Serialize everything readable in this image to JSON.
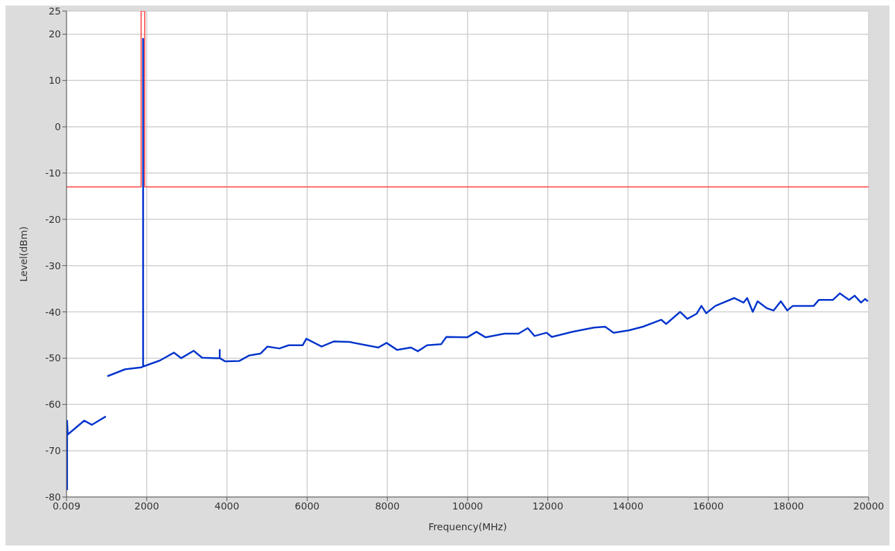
{
  "chart_data": {
    "type": "line",
    "xlabel": "Frequency(MHz)",
    "ylabel": "Level(dBm)",
    "xlim": [
      0.009,
      20000
    ],
    "xticks": [
      0.009,
      2000,
      4000,
      6000,
      8000,
      10000,
      12000,
      14000,
      16000,
      18000,
      20000
    ],
    "ylim": [
      -80,
      25
    ],
    "yticks": [
      -80,
      -70,
      -60,
      -50,
      -40,
      -30,
      -20,
      -10,
      0,
      10,
      20,
      25
    ],
    "grid": true,
    "marker": "none",
    "line_style": "solid",
    "series": [
      {
        "color": "#ff4040",
        "x": [
          0.009,
          1860,
          1860,
          1950,
          1950,
          20000
        ],
        "values": [
          -13,
          -13,
          25,
          25,
          -13,
          -13
        ]
      },
      {
        "color": "#0033cc",
        "x": [
          15,
          15,
          30,
          440,
          630,
          980,
          1000,
          1020,
          1460,
          1860,
          1910,
          1910,
          1910,
          2330,
          2680,
          2860,
          3170,
          3380,
          3730,
          3820,
          3820,
          3820,
          3960,
          4310,
          4560,
          4840,
          5010,
          5310,
          5540,
          5890,
          5980,
          6360,
          6660,
          7060,
          7770,
          7980,
          8240,
          8590,
          8760,
          8990,
          9340,
          9470,
          9990,
          10220,
          10450,
          10920,
          11270,
          11500,
          11670,
          11970,
          12100,
          12620,
          13150,
          13430,
          13640,
          14020,
          14370,
          14830,
          14950,
          15300,
          15480,
          15710,
          15830,
          15950,
          16180,
          16650,
          16880,
          16970,
          17110,
          17230,
          17460,
          17630,
          17810,
          17970,
          18110,
          18630,
          18760,
          19110,
          19280,
          19510,
          19650,
          19810,
          19910,
          19980
        ],
        "values": [
          -78.5,
          -63.5,
          -66.5,
          -63.5,
          -64.4,
          -62.6,
          null,
          -53.9,
          -52.4,
          -52,
          -51.8,
          19,
          -51.8,
          -50.5,
          -48.8,
          -50,
          -48.4,
          -49.9,
          -50,
          -50,
          -48.2,
          -50,
          -50.7,
          -50.6,
          -49.4,
          -49,
          -47.5,
          -47.9,
          -47.2,
          -47.2,
          -45.8,
          -47.5,
          -46.4,
          -46.5,
          -47.7,
          -46.7,
          -48.2,
          -47.7,
          -48.5,
          -47.2,
          -47,
          -45.4,
          -45.5,
          -44.3,
          -45.5,
          -44.7,
          -44.7,
          -43.5,
          -45.2,
          -44.5,
          -45.4,
          -44.3,
          -43.4,
          -43.2,
          -44.5,
          -44,
          -43.2,
          -41.7,
          -42.6,
          -40,
          -41.5,
          -40.4,
          -38.7,
          -40.3,
          -38.7,
          -37,
          -38,
          -37,
          -40,
          -37.7,
          -39.2,
          -39.7,
          -37.7,
          -39.7,
          -38.7,
          -38.7,
          -37.4,
          -37.4,
          -36,
          -37.4,
          -36.5,
          -38,
          -37.2,
          -37.7
        ]
      }
    ]
  }
}
